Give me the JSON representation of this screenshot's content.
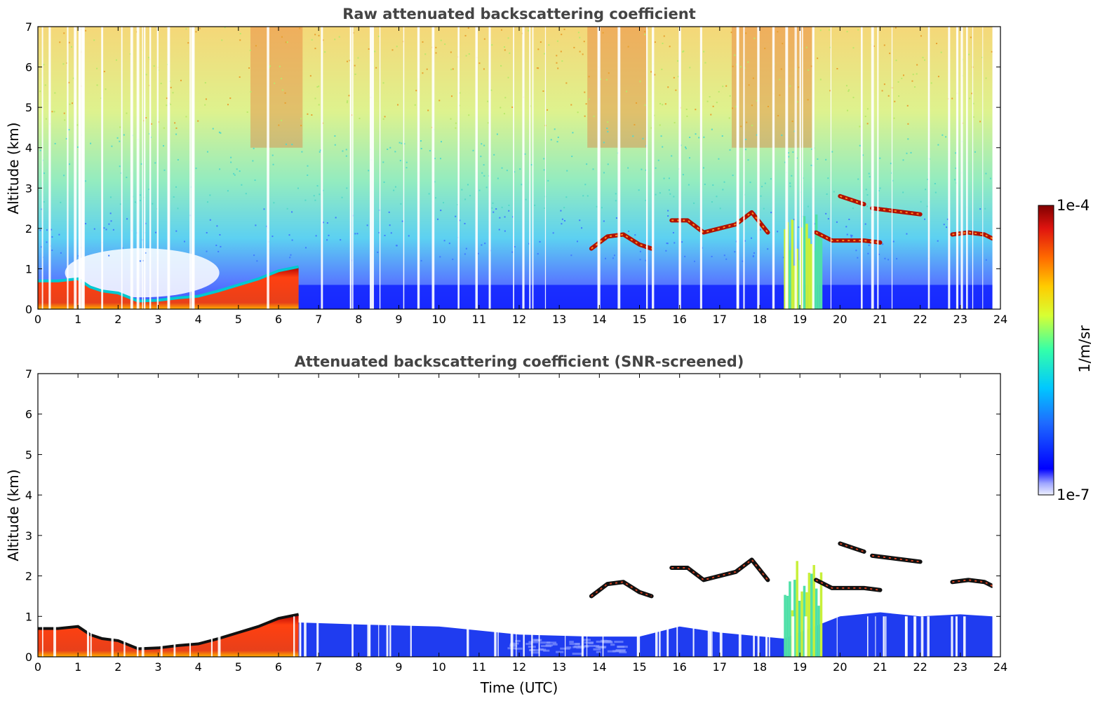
{
  "chart_data": [
    {
      "type": "heatmap",
      "title": "Raw attenuated backscattering coefficient",
      "xlabel": "",
      "ylabel": "Altitude (km)",
      "xlim": [
        0,
        24
      ],
      "ylim": [
        0,
        7
      ],
      "x_ticks": [
        "0",
        "1",
        "2",
        "3",
        "4",
        "5",
        "6",
        "7",
        "8",
        "9",
        "10",
        "11",
        "12",
        "13",
        "14",
        "15",
        "16",
        "17",
        "18",
        "19",
        "20",
        "21",
        "22",
        "23",
        "24"
      ],
      "y_ticks": [
        "0",
        "1",
        "2",
        "3",
        "4",
        "5",
        "6",
        "7"
      ],
      "screened": false,
      "boundary_layer_top_km": {
        "x": [
          0,
          0.5,
          1.0,
          1.3,
          1.6,
          2.0,
          2.5,
          3.0,
          3.5,
          4.0,
          4.5,
          5.0,
          5.5,
          6.0,
          6.5
        ],
        "y": [
          0.7,
          0.7,
          0.75,
          0.55,
          0.45,
          0.4,
          0.2,
          0.22,
          0.28,
          0.32,
          0.45,
          0.6,
          0.75,
          0.95,
          1.05
        ]
      },
      "cloud_layers": [
        {
          "x": [
            13.8,
            14.2,
            14.6,
            15.0,
            15.3
          ],
          "y": [
            1.5,
            1.8,
            1.85,
            1.6,
            1.5
          ]
        },
        {
          "x": [
            15.8,
            16.2,
            16.6,
            17.0,
            17.4,
            17.8,
            18.2
          ],
          "y": [
            2.2,
            2.2,
            1.9,
            2.0,
            2.1,
            2.4,
            1.9
          ]
        },
        {
          "x": [
            19.4,
            19.8,
            20.2,
            20.6,
            21.0
          ],
          "y": [
            1.9,
            1.7,
            1.7,
            1.7,
            1.65
          ]
        },
        {
          "x": [
            20.0,
            20.3,
            20.6
          ],
          "y": [
            2.8,
            2.7,
            2.6
          ]
        },
        {
          "x": [
            20.8,
            21.2,
            21.6,
            22.0
          ],
          "y": [
            2.5,
            2.45,
            2.4,
            2.35
          ]
        },
        {
          "x": [
            22.8,
            23.2,
            23.6,
            23.8
          ],
          "y": [
            1.85,
            1.9,
            1.85,
            1.75
          ]
        }
      ],
      "precip_column_x": [
        18.6,
        19.5
      ]
    },
    {
      "type": "heatmap",
      "title": "Attenuated backscattering coefficient (SNR-screened)",
      "xlabel": "Time (UTC)",
      "ylabel": "Altitude (km)",
      "xlim": [
        0,
        24
      ],
      "ylim": [
        0,
        7
      ],
      "x_ticks": [
        "0",
        "1",
        "2",
        "3",
        "4",
        "5",
        "6",
        "7",
        "8",
        "9",
        "10",
        "11",
        "12",
        "13",
        "14",
        "15",
        "16",
        "17",
        "18",
        "19",
        "20",
        "21",
        "22",
        "23",
        "24"
      ],
      "y_ticks": [
        "0",
        "1",
        "2",
        "3",
        "4",
        "5",
        "6",
        "7"
      ],
      "screened": true,
      "boundary_layer_top_km": {
        "x": [
          0,
          0.5,
          1.0,
          1.3,
          1.6,
          2.0,
          2.5,
          3.0,
          3.5,
          4.0,
          4.5,
          5.0,
          5.5,
          6.0,
          6.5
        ],
        "y": [
          0.7,
          0.7,
          0.75,
          0.55,
          0.45,
          0.4,
          0.2,
          0.22,
          0.28,
          0.32,
          0.45,
          0.6,
          0.75,
          0.95,
          1.05
        ]
      },
      "aerosol_top_km": {
        "x": [
          6.5,
          8,
          10,
          12,
          13.8,
          15,
          16,
          17,
          18.6,
          20,
          21,
          22,
          23,
          23.8
        ],
        "y": [
          0.85,
          0.8,
          0.75,
          0.55,
          0.5,
          0.5,
          0.75,
          0.6,
          0.45,
          1.0,
          1.1,
          1.0,
          1.05,
          1.0
        ]
      },
      "cloud_layers": [
        {
          "x": [
            13.8,
            14.2,
            14.6,
            15.0,
            15.3
          ],
          "y": [
            1.5,
            1.8,
            1.85,
            1.6,
            1.5
          ]
        },
        {
          "x": [
            15.8,
            16.2,
            16.6,
            17.0,
            17.4,
            17.8,
            18.2
          ],
          "y": [
            2.2,
            2.2,
            1.9,
            2.0,
            2.1,
            2.4,
            1.9
          ]
        },
        {
          "x": [
            19.4,
            19.8,
            20.2,
            20.6,
            21.0
          ],
          "y": [
            1.9,
            1.7,
            1.7,
            1.7,
            1.65
          ]
        },
        {
          "x": [
            20.0,
            20.3,
            20.6
          ],
          "y": [
            2.8,
            2.7,
            2.6
          ]
        },
        {
          "x": [
            20.8,
            21.2,
            21.6,
            22.0
          ],
          "y": [
            2.5,
            2.45,
            2.4,
            2.35
          ]
        },
        {
          "x": [
            22.8,
            23.2,
            23.6,
            23.8
          ],
          "y": [
            1.85,
            1.9,
            1.85,
            1.75
          ]
        }
      ],
      "precip_column_x": [
        18.6,
        19.5
      ]
    }
  ],
  "colorbar": {
    "label": "1/m/sr",
    "max_label": "1e-4",
    "min_label": "1e-7",
    "scale": "log",
    "colors": [
      "#7f0000",
      "#e31a1c",
      "#ff7f00",
      "#ffff33",
      "#66ff99",
      "#00e5ee",
      "#1e90ff",
      "#0000ff",
      "#e8e8ff"
    ]
  }
}
